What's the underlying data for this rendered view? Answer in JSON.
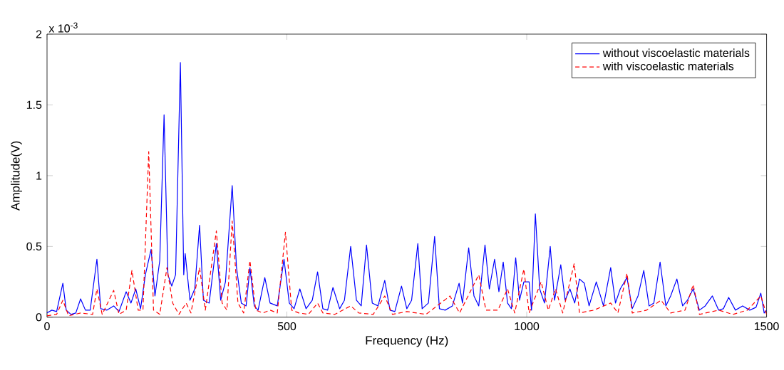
{
  "chart_data": {
    "type": "line",
    "xlabel": "Frequency (Hz)",
    "ylabel": "Amplitude(V)",
    "annotations": [
      "x 10$^{-3}$"
    ],
    "xlim": [
      0,
      1500
    ],
    "xticks": [
      0,
      500,
      1000,
      1500
    ],
    "ylim": [
      0,
      2
    ],
    "yticks": [
      0,
      0.5,
      1,
      1.5,
      2
    ],
    "grid": false,
    "legend": "top right",
    "marker": "none",
    "series": [
      {
        "name": "without viscoelastic materials",
        "color": "#0000ff",
        "line_style": "solid",
        "x": [
          0,
          10,
          20,
          33,
          40,
          50,
          60,
          70,
          80,
          90,
          104,
          112,
          125,
          139,
          150,
          165,
          175,
          185,
          195,
          205,
          217,
          225,
          235,
          244,
          252,
          260,
          268,
          278,
          285,
          288,
          298,
          308,
          318,
          326,
          338,
          353,
          362,
          372,
          386,
          395,
          405,
          415,
          423,
          432,
          440,
          454,
          465,
          480,
          494,
          505,
          515,
          527,
          540,
          553,
          564,
          575,
          585,
          596,
          610,
          620,
          633,
          645,
          655,
          666,
          678,
          690,
          704,
          715,
          725,
          739,
          750,
          760,
          773,
          782,
          795,
          808,
          818,
          830,
          845,
          859,
          866,
          879,
          890,
          900,
          913,
          922,
          933,
          942,
          951,
          960,
          968,
          977,
          985,
          994,
          1005,
          1010,
          1018,
          1027,
          1037,
          1049,
          1058,
          1071,
          1080,
          1090,
          1100,
          1110,
          1120,
          1130,
          1145,
          1160,
          1175,
          1185,
          1195,
          1209,
          1220,
          1232,
          1244,
          1255,
          1265,
          1278,
          1290,
          1300,
          1313,
          1325,
          1335,
          1347,
          1360,
          1372,
          1387,
          1400,
          1410,
          1421,
          1435,
          1450,
          1465,
          1478,
          1488,
          1495,
          1500
        ],
        "values": [
          0.03,
          0.05,
          0.04,
          0.24,
          0.05,
          0.02,
          0.03,
          0.13,
          0.05,
          0.05,
          0.41,
          0.06,
          0.05,
          0.08,
          0.04,
          0.18,
          0.1,
          0.2,
          0.06,
          0.3,
          0.48,
          0.15,
          0.4,
          1.43,
          0.3,
          0.22,
          0.3,
          1.8,
          0.3,
          0.45,
          0.12,
          0.2,
          0.65,
          0.12,
          0.1,
          0.52,
          0.12,
          0.25,
          0.93,
          0.35,
          0.1,
          0.08,
          0.35,
          0.08,
          0.05,
          0.28,
          0.1,
          0.08,
          0.41,
          0.1,
          0.06,
          0.2,
          0.06,
          0.12,
          0.32,
          0.06,
          0.05,
          0.21,
          0.06,
          0.12,
          0.5,
          0.12,
          0.08,
          0.51,
          0.1,
          0.08,
          0.26,
          0.05,
          0.04,
          0.22,
          0.06,
          0.12,
          0.52,
          0.06,
          0.1,
          0.57,
          0.06,
          0.05,
          0.08,
          0.24,
          0.1,
          0.49,
          0.15,
          0.08,
          0.51,
          0.2,
          0.41,
          0.18,
          0.39,
          0.1,
          0.06,
          0.42,
          0.12,
          0.25,
          0.25,
          0.05,
          0.73,
          0.2,
          0.1,
          0.5,
          0.12,
          0.37,
          0.12,
          0.2,
          0.1,
          0.27,
          0.24,
          0.08,
          0.25,
          0.08,
          0.35,
          0.1,
          0.2,
          0.28,
          0.06,
          0.15,
          0.33,
          0.08,
          0.1,
          0.39,
          0.08,
          0.15,
          0.27,
          0.08,
          0.12,
          0.2,
          0.05,
          0.08,
          0.15,
          0.05,
          0.06,
          0.14,
          0.05,
          0.08,
          0.05,
          0.07,
          0.17,
          0.03,
          0.05
        ]
      },
      {
        "name": "with viscoelastic materials",
        "color": "#ff0000",
        "line_style": "dashed",
        "x": [
          0,
          20,
          33,
          45,
          70,
          95,
          104,
          115,
          139,
          150,
          165,
          177,
          190,
          200,
          212,
          222,
          235,
          250,
          262,
          275,
          290,
          300,
          318,
          330,
          353,
          365,
          375,
          386,
          398,
          410,
          423,
          435,
          450,
          465,
          480,
          497,
          510,
          525,
          545,
          564,
          575,
          600,
          633,
          650,
          680,
          704,
          720,
          750,
          790,
          840,
          860,
          900,
          915,
          940,
          960,
          975,
          994,
          1005,
          1030,
          1045,
          1060,
          1075,
          1099,
          1110,
          1140,
          1175,
          1190,
          1209,
          1220,
          1250,
          1280,
          1300,
          1330,
          1347,
          1360,
          1400,
          1430,
          1460,
          1488,
          1500
        ],
        "values": [
          0.01,
          0.02,
          0.12,
          0.01,
          0.03,
          0.02,
          0.2,
          0.02,
          0.19,
          0.02,
          0.05,
          0.33,
          0.05,
          0.05,
          1.17,
          0.05,
          0.02,
          0.35,
          0.1,
          0.02,
          0.1,
          0.03,
          0.35,
          0.05,
          0.61,
          0.1,
          0.05,
          0.68,
          0.1,
          0.03,
          0.4,
          0.05,
          0.03,
          0.05,
          0.03,
          0.6,
          0.05,
          0.03,
          0.02,
          0.1,
          0.03,
          0.02,
          0.08,
          0.03,
          0.02,
          0.15,
          0.02,
          0.04,
          0.02,
          0.15,
          0.03,
          0.3,
          0.05,
          0.05,
          0.2,
          0.03,
          0.34,
          0.03,
          0.25,
          0.05,
          0.2,
          0.03,
          0.38,
          0.03,
          0.05,
          0.1,
          0.03,
          0.31,
          0.03,
          0.05,
          0.12,
          0.03,
          0.05,
          0.23,
          0.02,
          0.05,
          0.02,
          0.05,
          0.15,
          0.02
        ]
      }
    ]
  }
}
